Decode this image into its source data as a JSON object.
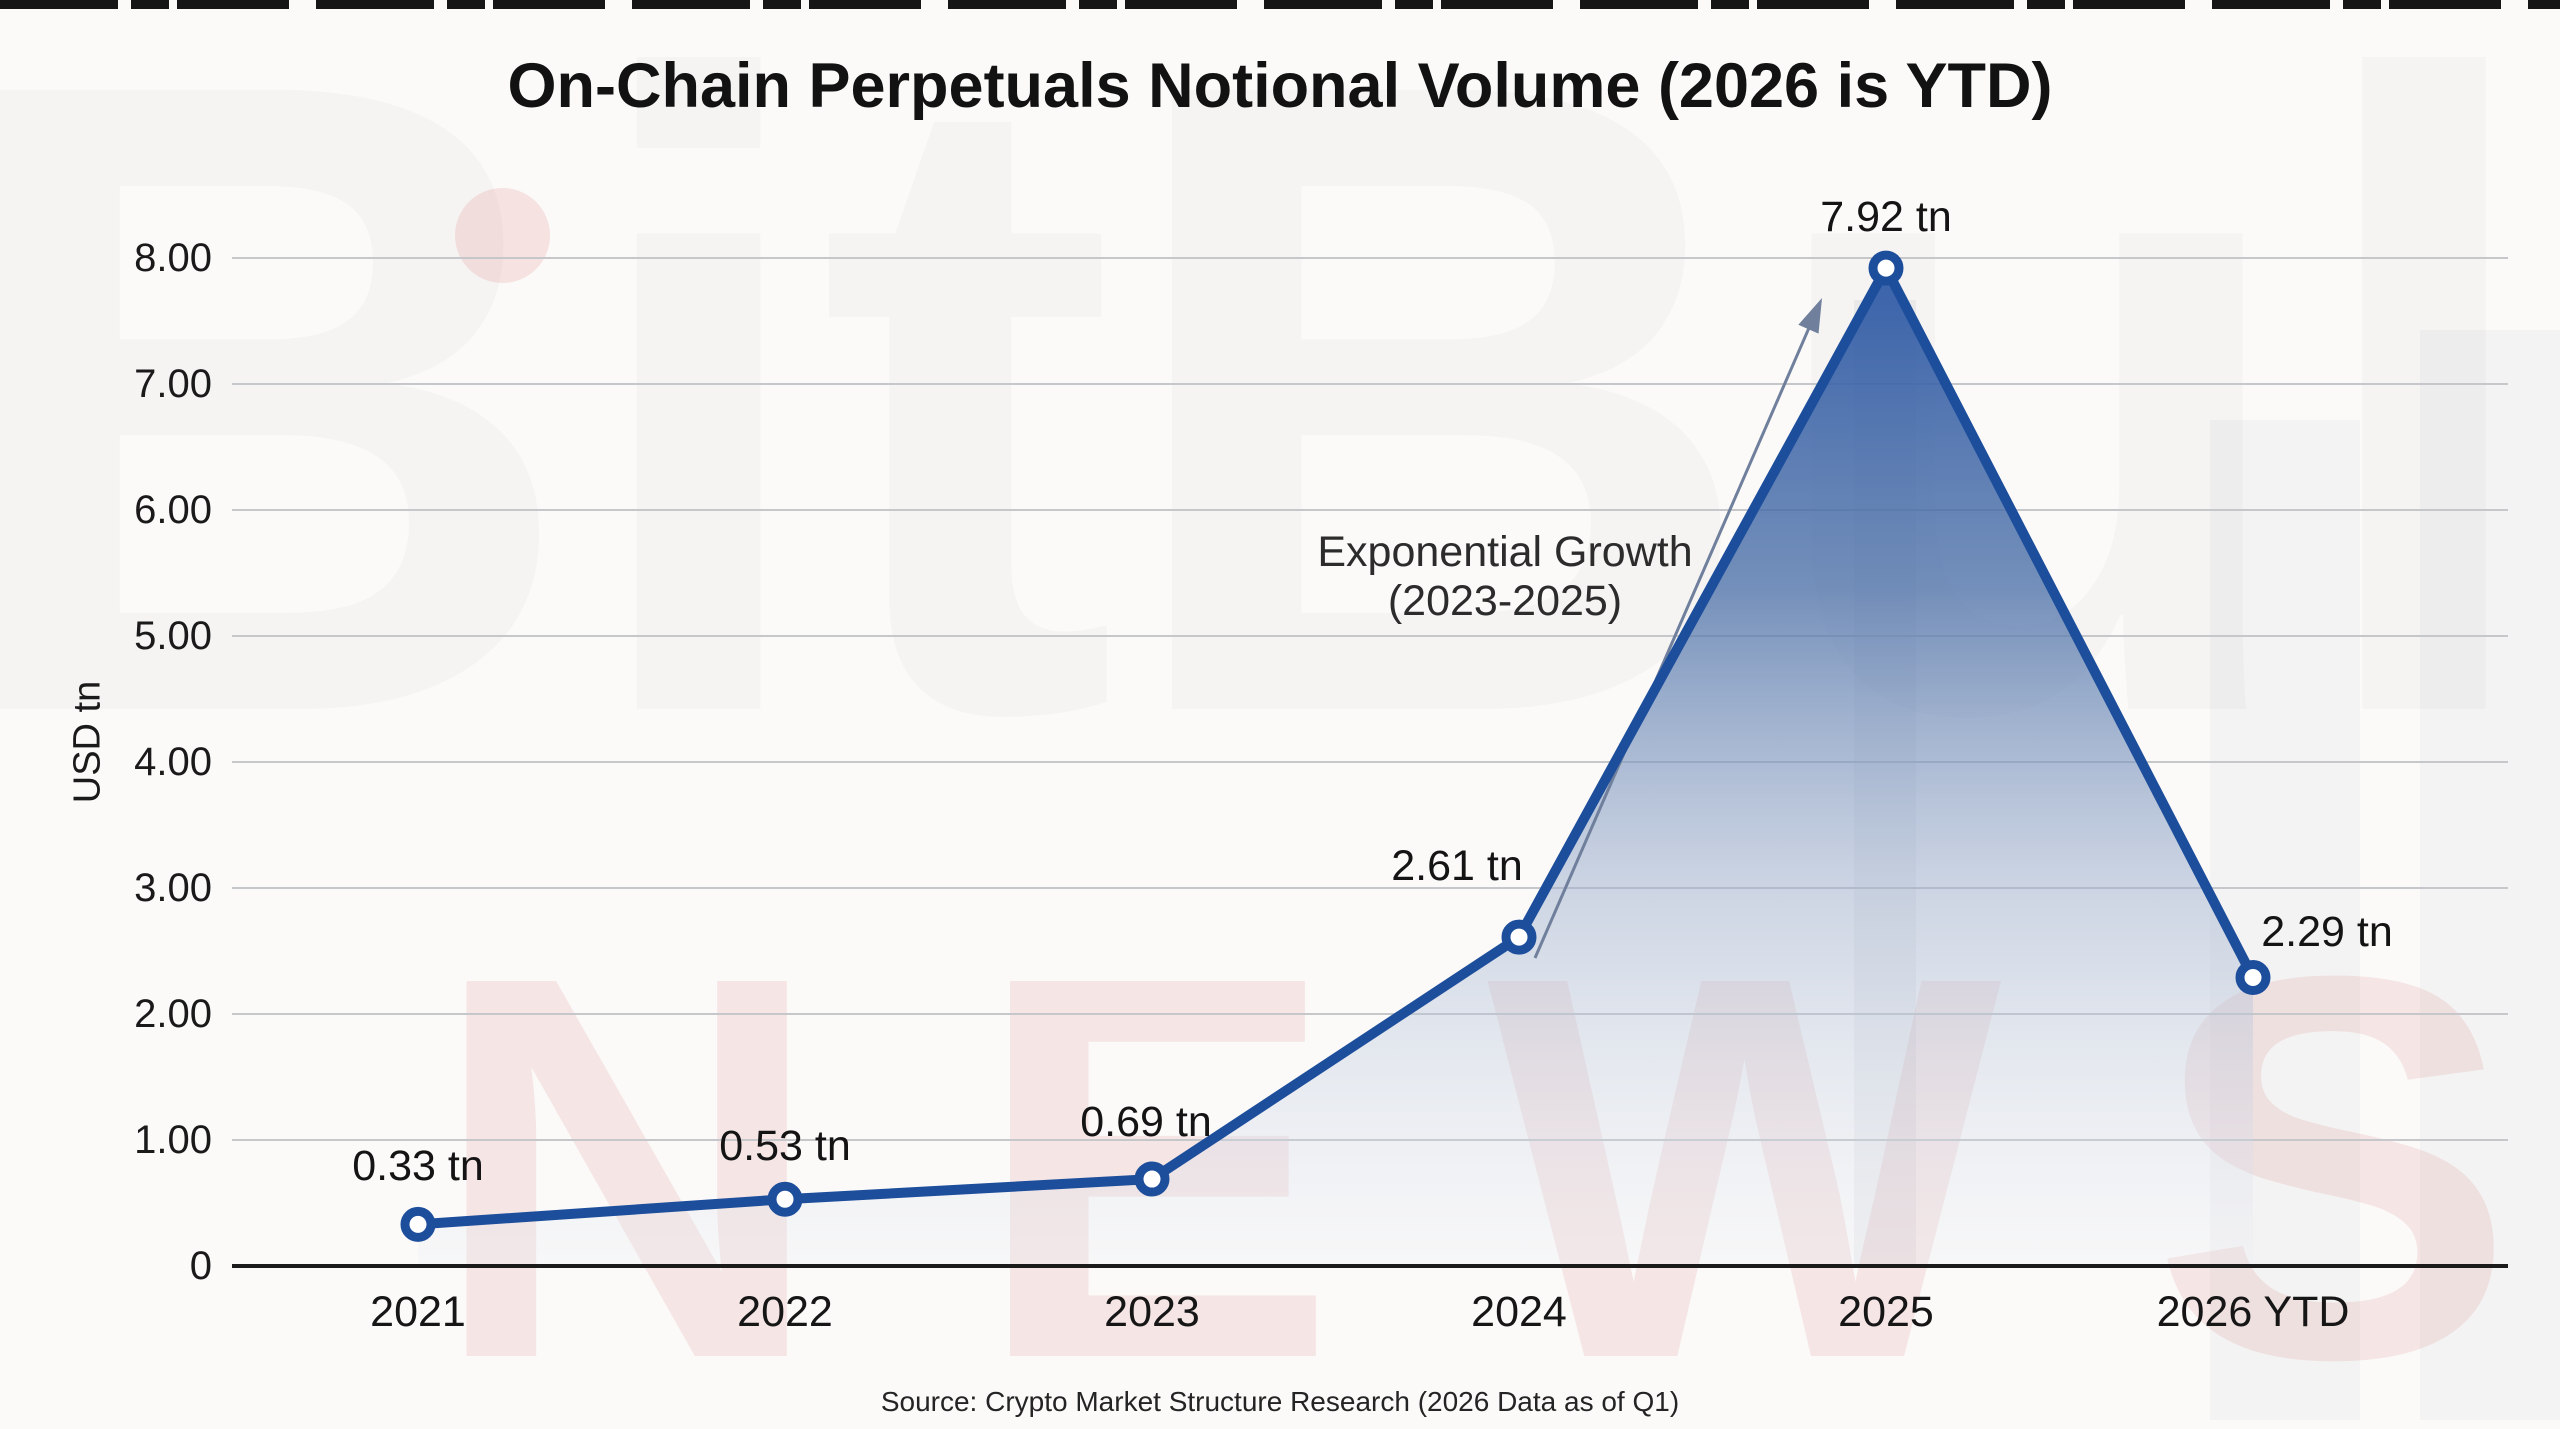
{
  "chart_data": {
    "type": "area",
    "title": "On-Chain Perpetuals Notional Volume (2026 is YTD)",
    "categories": [
      "2021",
      "2022",
      "2023",
      "2024",
      "2025",
      "2026 YTD"
    ],
    "values": [
      0.33,
      0.53,
      0.69,
      2.61,
      7.92,
      2.29
    ],
    "point_labels": [
      "0.33 tn",
      "0.53 tn",
      "0.69 tn",
      "2.61 tn",
      "7.92 tn",
      "2.29 tn"
    ],
    "ylabel": "USD tn",
    "xlabel": "",
    "y_ticks": [
      "8.00",
      "7.00",
      "6.00",
      "5.00",
      "4.00",
      "3.00",
      "2.00",
      "1.00",
      "0"
    ],
    "ylim": [
      0,
      8
    ],
    "grid": true,
    "legend": "none",
    "annotation": {
      "line1": "Exponential Growth",
      "line2": "(2023-2025)"
    },
    "source": "Source: Crypto Market Structure Research (2026 Data as of Q1)",
    "watermark": {
      "top": "BitBull",
      "bottom": "NEWS"
    },
    "colors": {
      "line": "#1d4e9c",
      "marker_fill": "#ffffff",
      "area_top": "#2b57a5",
      "area_bottom": "#e9edf4",
      "grid": "#c5c7ca",
      "axis": "#1b1b1b",
      "arrow": "#6f7f9c",
      "text": "#1a1a1a"
    }
  }
}
